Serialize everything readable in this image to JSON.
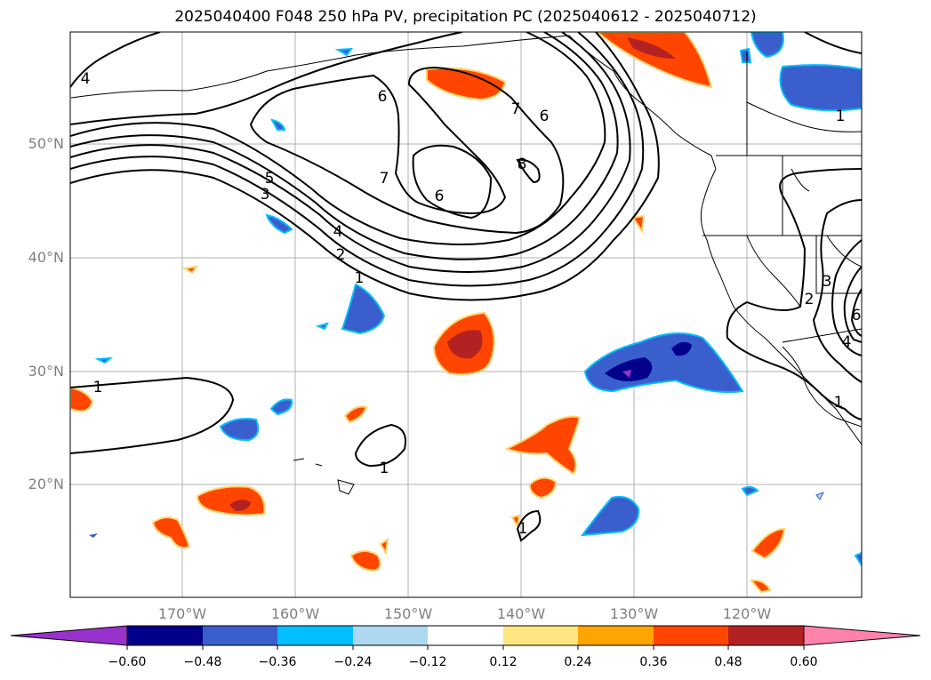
{
  "title": "2025040400 F048 250 hPa PV, precipitation PC (2025040612 - 2025040712)",
  "lat_labels": [
    "50°N",
    "40°N",
    "30°N",
    "20°N"
  ],
  "lon_labels": [
    "170°W",
    "160°W",
    "150°W",
    "140°W",
    "130°W",
    "120°W"
  ],
  "colorbar": {
    "ticks": [
      "−0.60",
      "−0.48",
      "−0.36",
      "−0.24",
      "−0.12",
      "0.12",
      "0.24",
      "0.36",
      "0.48",
      "0.60"
    ],
    "colors": [
      "#9932cc",
      "#00008b",
      "#3a5fcd",
      "#00bfff",
      "#add8f0",
      "#ffffff",
      "#ffe680",
      "#ffa500",
      "#ff4500",
      "#b22222",
      "#ff82ab"
    ]
  },
  "contour_labels": [
    "4",
    "6",
    "7",
    "6",
    "8",
    "7",
    "6",
    "5",
    "3",
    "4",
    "2",
    "1",
    "1",
    "1",
    "1",
    "1",
    "1",
    "3",
    "2",
    "4",
    "6"
  ]
}
